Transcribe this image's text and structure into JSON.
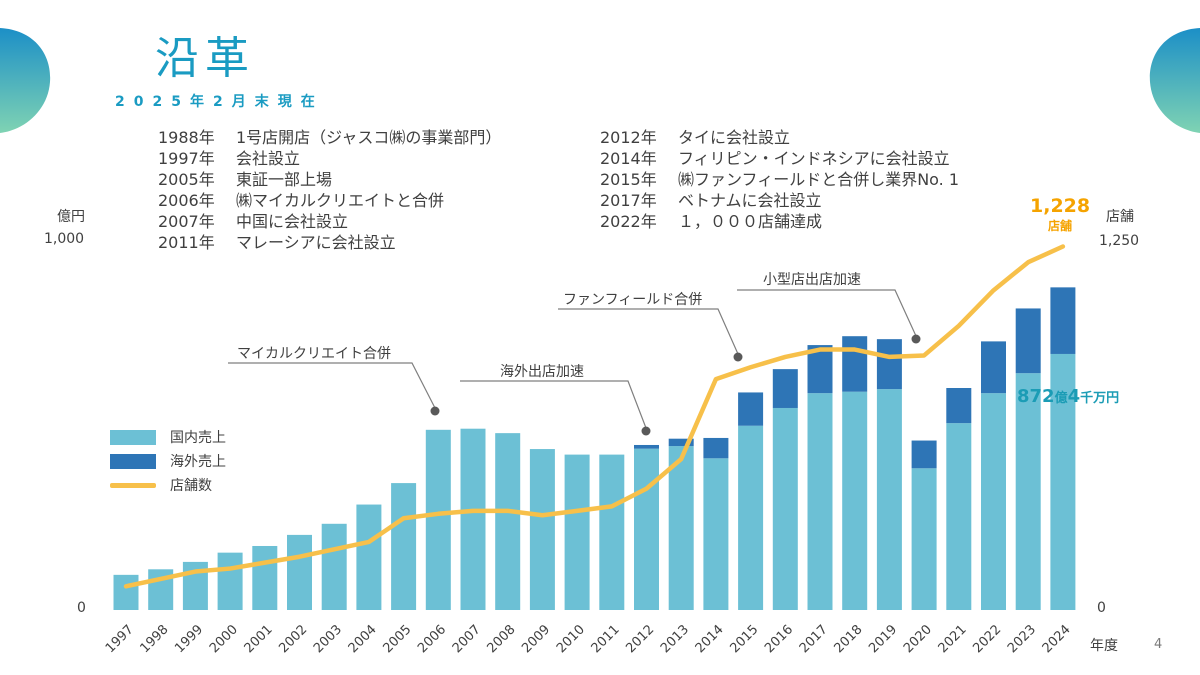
{
  "title": "沿革",
  "subtitle": "2025年2月末現在",
  "history_left": [
    {
      "year": "1988年",
      "event": "1号店開店（ジャスコ㈱の事業部門）"
    },
    {
      "year": "1997年",
      "event": "会社設立"
    },
    {
      "year": "2005年",
      "event": "東証一部上場"
    },
    {
      "year": "2006年",
      "event": "㈱マイカルクリエイトと合併"
    },
    {
      "year": "2007年",
      "event": "中国に会社設立"
    },
    {
      "year": "2011年",
      "event": "マレーシアに会社設立"
    }
  ],
  "history_right": [
    {
      "year": "2012年",
      "event": "タイに会社設立"
    },
    {
      "year": "2014年",
      "event": "フィリピン・インドネシアに会社設立"
    },
    {
      "year": "2015年",
      "event": "㈱ファンフィールドと合併し業界No. 1"
    },
    {
      "year": "2017年",
      "event": "ベトナムに会社設立"
    },
    {
      "year": "2022年",
      "event": "１，０００店舗達成"
    }
  ],
  "axis": {
    "left_unit": "億円",
    "left_max": "1,000",
    "left_min": "0",
    "right_unit": "店舗",
    "right_max": "1,250",
    "right_min": "0",
    "x_unit": "年度"
  },
  "legend": {
    "domestic": "国内売上",
    "overseas": "海外売上",
    "stores": "店舗数"
  },
  "callouts": {
    "mycal": "マイカルクリエイト合併",
    "overseas": "海外出店加速",
    "funfield": "ファンフィールド合併",
    "small_store": "小型店出店加速"
  },
  "highlights": {
    "stores_value": "1,228",
    "stores_unit": "店舗",
    "sales_value": "872",
    "sales_unit1": "億",
    "sales_value2": "4",
    "sales_unit2": "千万円"
  },
  "page_number": "4",
  "colors": {
    "domestic": "#6cc0d5",
    "overseas": "#2e75b6",
    "stores": "#f7c04a",
    "title": "#1a9bc2"
  },
  "chart_data": {
    "type": "bar",
    "stacked": true,
    "categories": [
      "1997",
      "1998",
      "1999",
      "2000",
      "2001",
      "2002",
      "2003",
      "2004",
      "2005",
      "2006",
      "2007",
      "2008",
      "2009",
      "2010",
      "2011",
      "2012",
      "2013",
      "2014",
      "2015",
      "2016",
      "2017",
      "2018",
      "2019",
      "2020",
      "2021",
      "2022",
      "2023",
      "2024"
    ],
    "series": [
      {
        "name": "国内売上",
        "values": [
          95,
          110,
          130,
          155,
          173,
          203,
          233,
          285,
          343,
          487,
          490,
          478,
          435,
          420,
          420,
          436,
          443,
          410,
          498,
          546,
          586,
          590,
          597,
          383,
          505,
          586,
          640,
          692
        ]
      },
      {
        "name": "海外売上",
        "values": [
          0,
          0,
          0,
          0,
          0,
          0,
          0,
          0,
          0,
          0,
          0,
          0,
          0,
          0,
          0,
          10,
          20,
          55,
          90,
          105,
          130,
          150,
          135,
          75,
          95,
          140,
          175,
          180
        ]
      }
    ],
    "line_series": {
      "name": "店舗数",
      "values": [
        80,
        105,
        130,
        140,
        160,
        180,
        205,
        230,
        310,
        325,
        335,
        335,
        320,
        335,
        350,
        410,
        510,
        780,
        820,
        855,
        880,
        880,
        855,
        860,
        960,
        1080,
        1175,
        1228
      ]
    },
    "ylim_left": [
      0,
      1000
    ],
    "ylim_right": [
      0,
      1250
    ],
    "ylabel_left": "億円",
    "ylabel_right": "店舗",
    "xlabel": "年度"
  }
}
